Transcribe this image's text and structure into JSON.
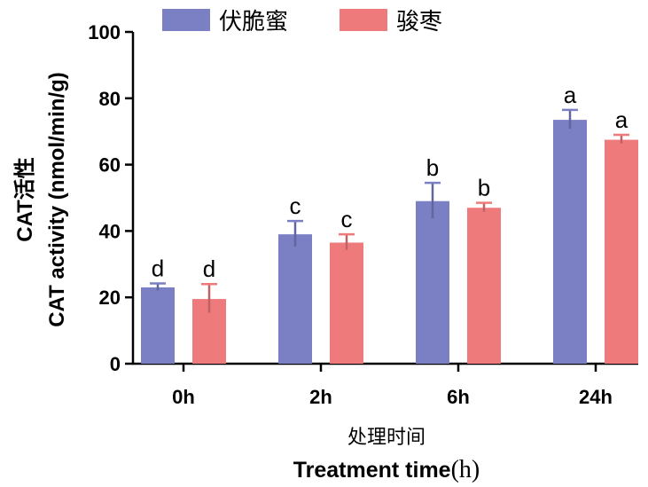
{
  "chart_data": {
    "type": "bar",
    "categories": [
      "0h",
      "2h",
      "6h",
      "24h"
    ],
    "series": [
      {
        "name": "伏脆蜜",
        "color": "#7b7fc4",
        "values": [
          23,
          39,
          49,
          73.5
        ],
        "errors": [
          1.2,
          4,
          5.5,
          3
        ],
        "significance": [
          "d",
          "c",
          "b",
          "a"
        ]
      },
      {
        "name": "骏枣",
        "color": "#ee7a7c",
        "values": [
          19.5,
          36.5,
          47,
          67.5
        ],
        "errors": [
          4.5,
          2.5,
          1.5,
          1.5
        ],
        "significance": [
          "d",
          "c",
          "b",
          "a"
        ]
      }
    ],
    "ylim": [
      0,
      100
    ],
    "yticks": [
      "0",
      "20",
      "40",
      "60",
      "80",
      "100"
    ],
    "ylabel_line1": "CAT活性",
    "ylabel_line2": "CAT activity (nmol/min/g)",
    "xlabel_line1": "处理时间",
    "xlabel_line2": "Treatment time",
    "xlabel_unit": "(h)",
    "legend_position": "top"
  }
}
